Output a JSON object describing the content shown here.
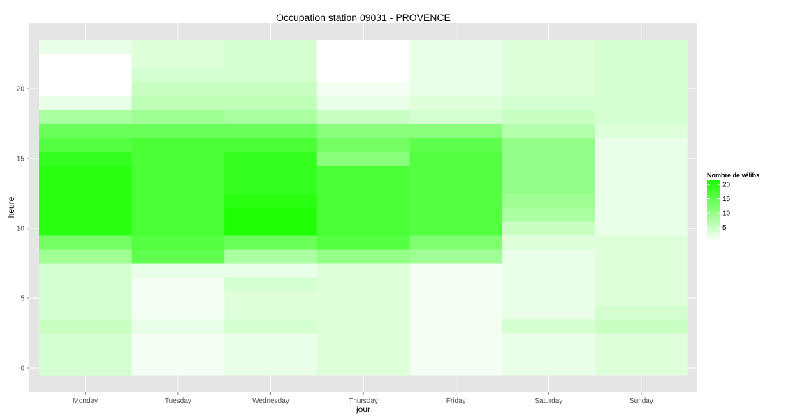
{
  "chart_data": {
    "type": "heatmap",
    "title": "Occupation station 09031 - PROVENCE",
    "xlabel": "jour",
    "ylabel": "heure",
    "x": [
      "Monday",
      "Tuesday",
      "Wednesday",
      "Thursday",
      "Friday",
      "Saturday",
      "Sunday"
    ],
    "y": [
      0,
      1,
      2,
      3,
      4,
      5,
      6,
      7,
      8,
      9,
      10,
      11,
      12,
      13,
      14,
      15,
      16,
      17,
      18,
      19,
      20,
      21,
      22,
      23
    ],
    "y_ticks": [
      0,
      5,
      10,
      15,
      20
    ],
    "ylim": [
      -0.5,
      23.5
    ],
    "values": [
      [
        4,
        1,
        2,
        3,
        1,
        2,
        3
      ],
      [
        4,
        1,
        2,
        3,
        1,
        2,
        3
      ],
      [
        4,
        1,
        2,
        3,
        1,
        2,
        3
      ],
      [
        5,
        2,
        4,
        3,
        1,
        4,
        5
      ],
      [
        4,
        1,
        3,
        3,
        1,
        2,
        4
      ],
      [
        4,
        1,
        3,
        3,
        1,
        2,
        3
      ],
      [
        4,
        1,
        4,
        3,
        1,
        2,
        3
      ],
      [
        4,
        2,
        2,
        3,
        1,
        2,
        3
      ],
      [
        9,
        15,
        8,
        10,
        9,
        2,
        3
      ],
      [
        13,
        16,
        14,
        16,
        12,
        3,
        3
      ],
      [
        20,
        17,
        21,
        17,
        16,
        5,
        2
      ],
      [
        20,
        17,
        21,
        17,
        16,
        8,
        2
      ],
      [
        20,
        17,
        20,
        17,
        16,
        9,
        2
      ],
      [
        20,
        17,
        19,
        17,
        16,
        10,
        2
      ],
      [
        20,
        17,
        19,
        17,
        16,
        10,
        2
      ],
      [
        19,
        17,
        19,
        11,
        16,
        10,
        2
      ],
      [
        16,
        17,
        17,
        13,
        15,
        10,
        2
      ],
      [
        14,
        14,
        14,
        11,
        11,
        7,
        3
      ],
      [
        8,
        9,
        8,
        5,
        4,
        5,
        4
      ],
      [
        2,
        6,
        6,
        2,
        3,
        4,
        4
      ],
      [
        0,
        5,
        5,
        1,
        2,
        3,
        4
      ],
      [
        0,
        4,
        4,
        0,
        2,
        3,
        4
      ],
      [
        0,
        3,
        4,
        0,
        2,
        3,
        4
      ],
      [
        2,
        3,
        4,
        0,
        2,
        3,
        4
      ]
    ],
    "legend": {
      "title": "Nombre de vélibs",
      "ticks": [
        5,
        10,
        15,
        20
      ],
      "range": [
        0,
        21.5
      ],
      "placement": "right"
    },
    "colors": {
      "low": "#ffffff",
      "high": "#1aff00",
      "panel_background": "#e5e5e5",
      "grid": "#ffffff"
    },
    "grid": true
  }
}
